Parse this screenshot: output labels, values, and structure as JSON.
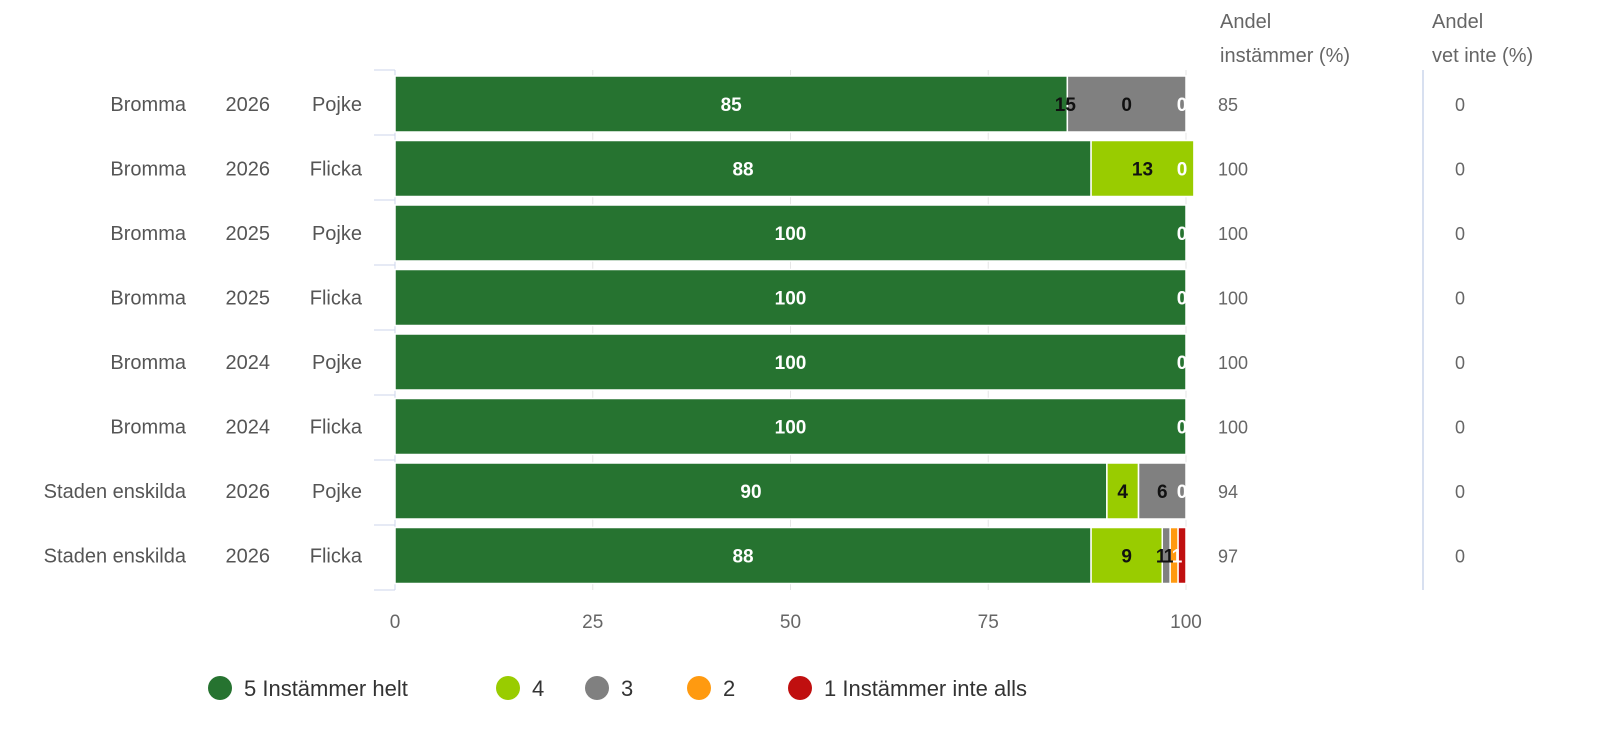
{
  "chart_data": {
    "type": "bar",
    "orientation": "horizontal",
    "stacked": true,
    "categories": [
      [
        "Bromma",
        "2026",
        "Pojke"
      ],
      [
        "Bromma",
        "2026",
        "Flicka"
      ],
      [
        "Bromma",
        "2025",
        "Pojke"
      ],
      [
        "Bromma",
        "2025",
        "Flicka"
      ],
      [
        "Bromma",
        "2024",
        "Pojke"
      ],
      [
        "Bromma",
        "2024",
        "Flicka"
      ],
      [
        "Staden enskilda",
        "2026",
        "Pojke"
      ],
      [
        "Staden enskilda",
        "2026",
        "Flicka"
      ]
    ],
    "series": [
      {
        "name": "5 Instämmer helt",
        "color": "#267330",
        "label_color": "#ffffff",
        "values": [
          85,
          88,
          100,
          100,
          100,
          100,
          90,
          88
        ]
      },
      {
        "name": "4",
        "color": "#99cc00",
        "label_color": "#111111",
        "values": [
          0,
          13,
          0,
          0,
          0,
          0,
          4,
          9
        ]
      },
      {
        "name": "3",
        "color": "#808080",
        "label_color": "#111111",
        "values": [
          15,
          0,
          0,
          0,
          0,
          0,
          6,
          1
        ]
      },
      {
        "name": "2",
        "color": "#ff9a10",
        "label_color": "#111111",
        "values": [
          0,
          0,
          0,
          0,
          0,
          0,
          0,
          1
        ]
      },
      {
        "name": "1 Instämmer inte alls",
        "color": "#c00f0f",
        "label_color": "#ffffff",
        "values": [
          0,
          0,
          0,
          0,
          0,
          0,
          0,
          1
        ]
      }
    ],
    "bar_labels": [
      [
        "85",
        "0",
        "15",
        "0"
      ],
      [
        "88",
        "13",
        "0"
      ],
      [
        "100",
        "0"
      ],
      [
        "100",
        "0"
      ],
      [
        "100",
        "0"
      ],
      [
        "100",
        "0"
      ],
      [
        "90",
        "4",
        "6",
        "0"
      ],
      [
        "88",
        "9",
        "1",
        "1",
        "1"
      ]
    ],
    "xlim": [
      0,
      100
    ],
    "xticks": [
      0,
      25,
      50,
      75,
      100
    ],
    "grid": true,
    "legend_position": "bottom-center",
    "side_columns": [
      {
        "header": [
          "Andel",
          "instämmer (%)"
        ],
        "values": [
          "85",
          "100",
          "100",
          "100",
          "100",
          "100",
          "94",
          "97"
        ]
      },
      {
        "header": [
          "Andel",
          "vet inte (%)"
        ],
        "values": [
          "0",
          "0",
          "0",
          "0",
          "0",
          "0",
          "0",
          "0"
        ]
      }
    ]
  }
}
